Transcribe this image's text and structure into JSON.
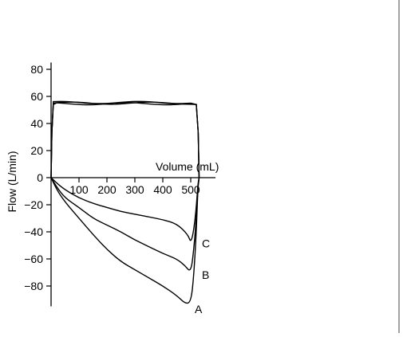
{
  "chart_data": {
    "type": "line",
    "title": "",
    "xlabel": "Volume (mL)",
    "ylabel": "Flow (L/min)",
    "xlim": [
      0,
      560
    ],
    "ylim": [
      -95,
      85
    ],
    "x_ticks": [
      100,
      200,
      300,
      400,
      500
    ],
    "x_tick_labels": [
      "100",
      "200",
      "300",
      "400",
      "500"
    ],
    "y_ticks": [
      80,
      60,
      40,
      20,
      0,
      -20,
      -40,
      -60,
      -80
    ],
    "y_tick_labels": [
      "80",
      "60",
      "40",
      "20",
      "0",
      "−20",
      "−40",
      "−60",
      "−80"
    ],
    "grid": false,
    "legend": "none",
    "inspiration_plateau_flow": 55,
    "series": [
      {
        "name": "A",
        "x": [
          0,
          20,
          50,
          100,
          150,
          200,
          250,
          300,
          350,
          400,
          450,
          480,
          500,
          510,
          520,
          525,
          530
        ],
        "y": [
          0,
          -9,
          -18,
          -30,
          -42,
          -53,
          -62,
          -68,
          -74,
          -80,
          -87,
          -93,
          -92,
          -75,
          -40,
          -10,
          0
        ]
      },
      {
        "name": "B",
        "x": [
          0,
          20,
          50,
          100,
          150,
          200,
          250,
          300,
          350,
          400,
          450,
          480,
          500,
          510,
          520,
          525,
          530
        ],
        "y": [
          0,
          -7,
          -15,
          -22,
          -30,
          -35,
          -40,
          -46,
          -51,
          -56,
          -60,
          -65,
          -70,
          -55,
          -30,
          -8,
          0
        ]
      },
      {
        "name": "C",
        "x": [
          0,
          20,
          50,
          100,
          150,
          200,
          250,
          300,
          350,
          400,
          450,
          490,
          500,
          510,
          520,
          525,
          530
        ],
        "y": [
          0,
          -4,
          -9,
          -15,
          -19,
          -22,
          -25,
          -27,
          -29,
          -31,
          -34,
          -42,
          -48,
          -40,
          -22,
          -6,
          0
        ]
      }
    ]
  }
}
